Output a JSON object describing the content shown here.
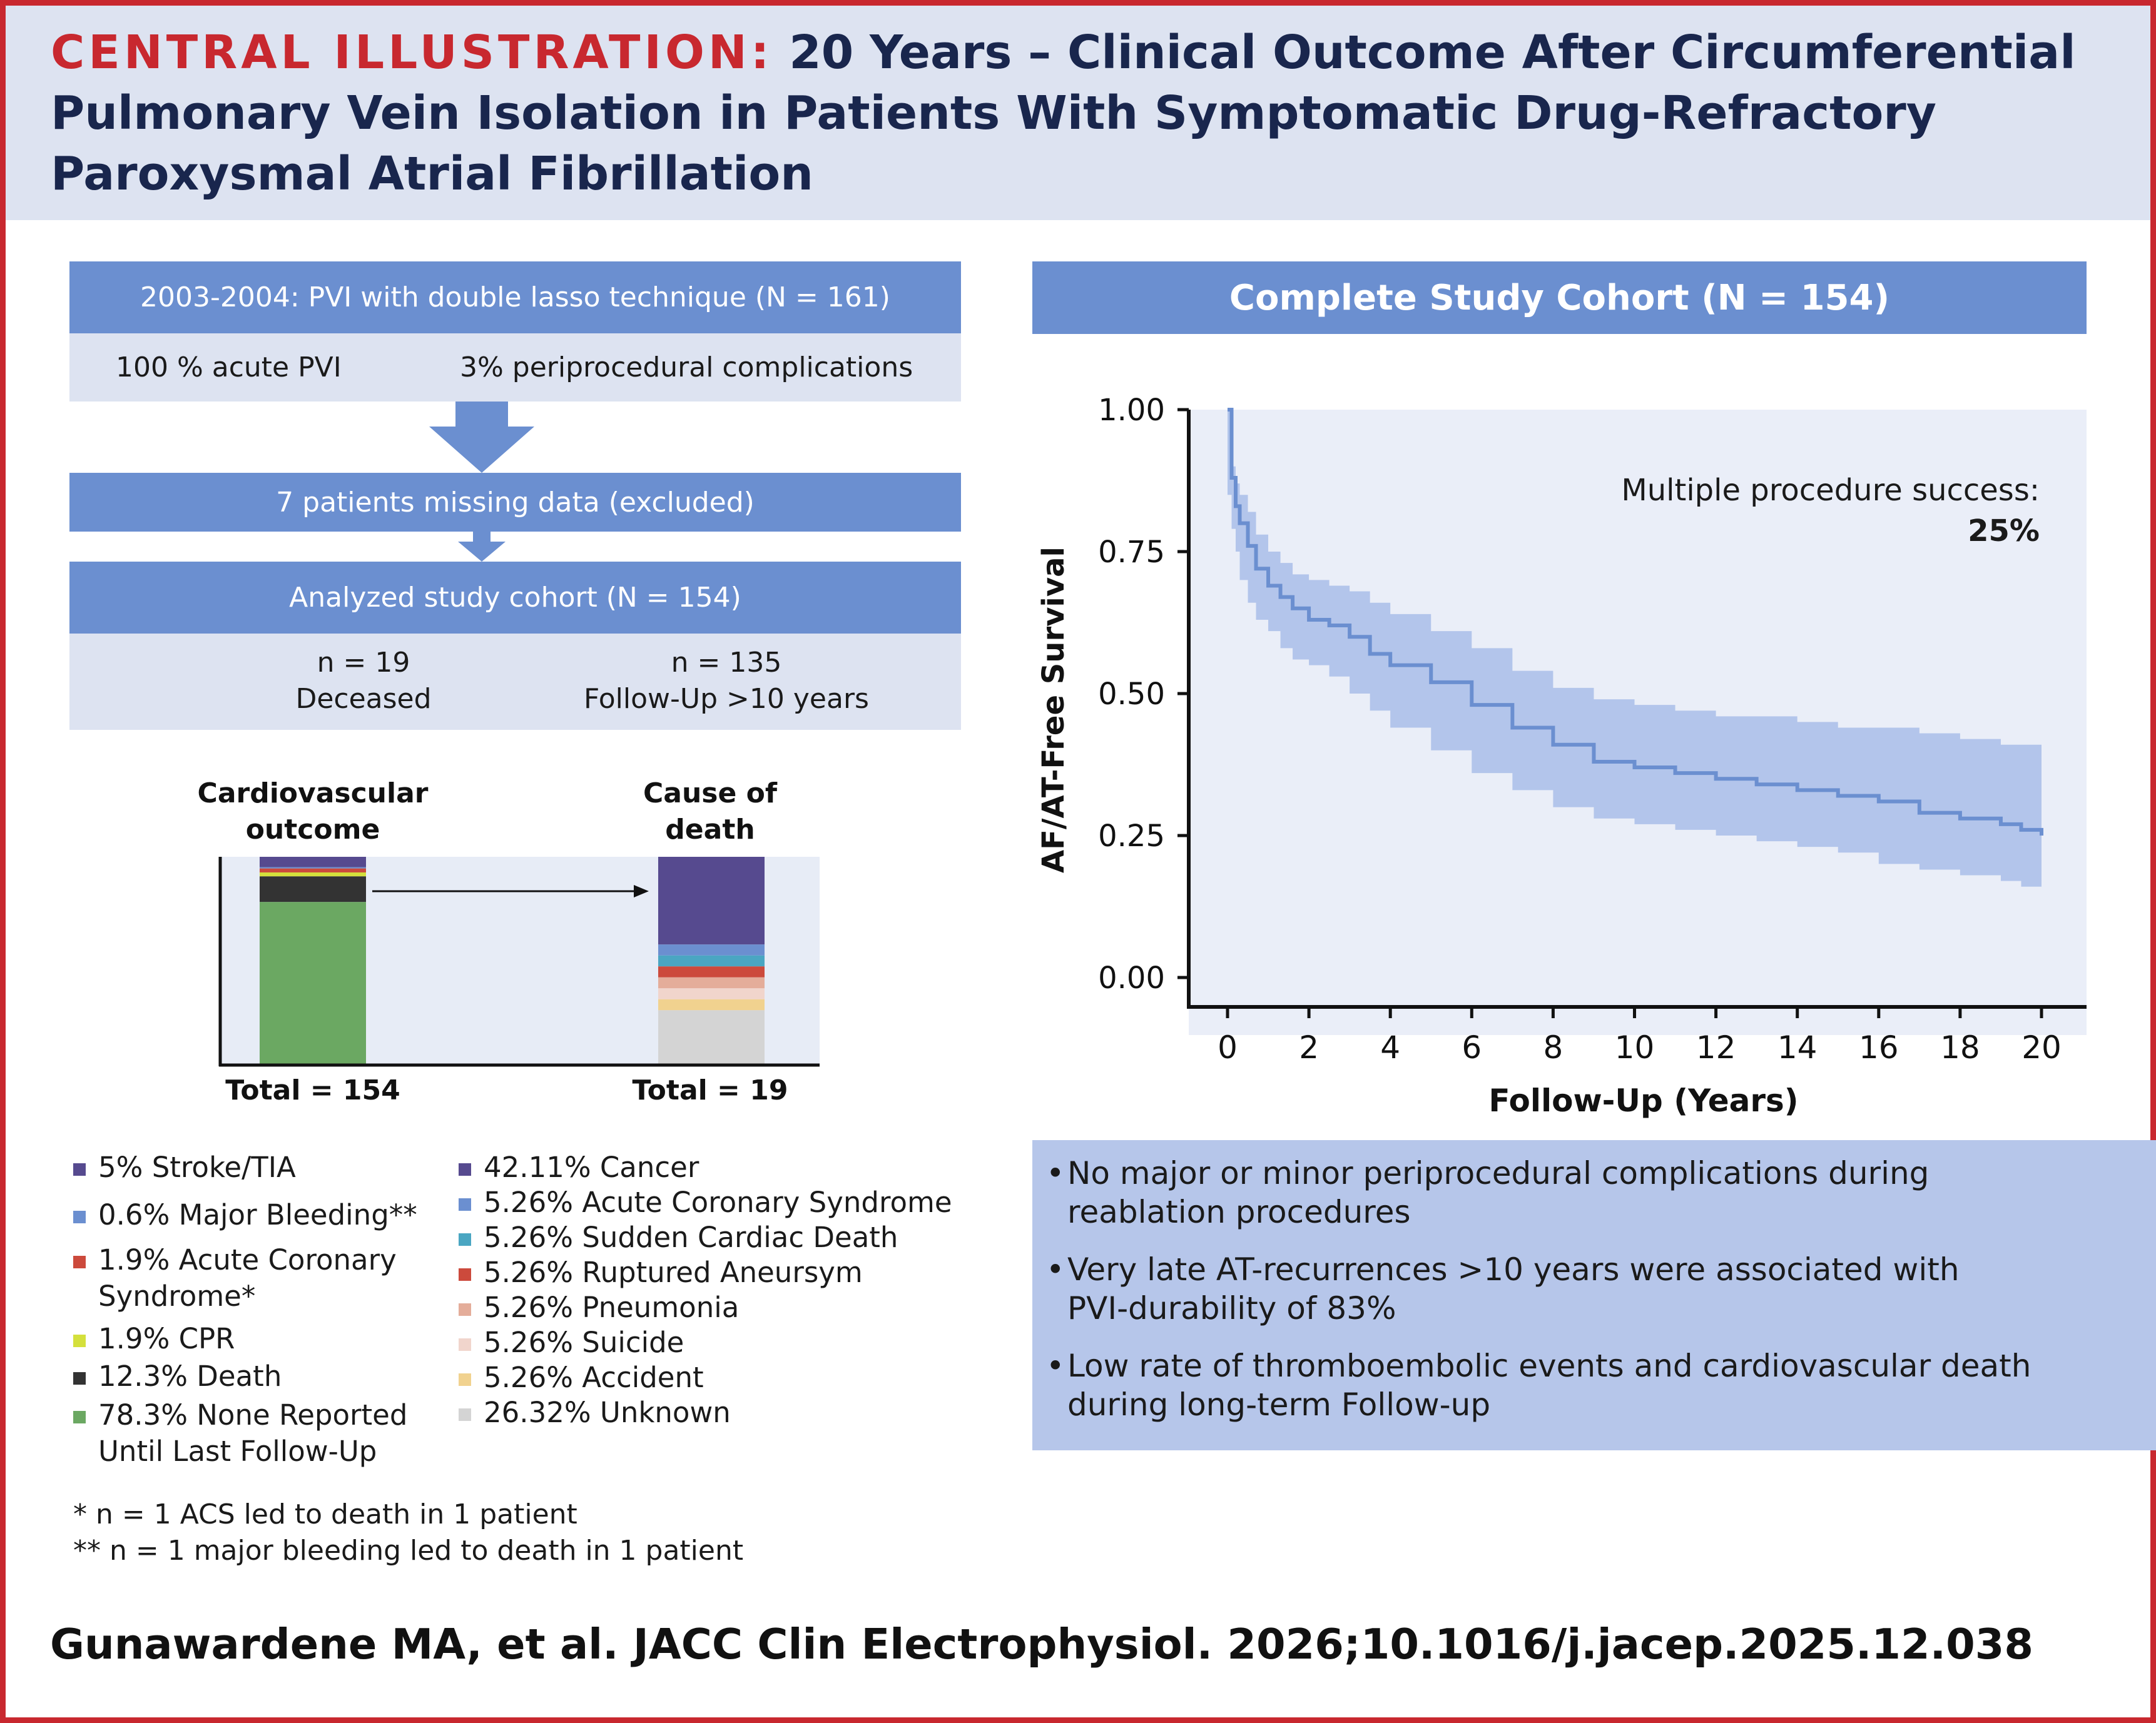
{
  "header": {
    "label": "CENTRAL ILLUSTRATION:",
    "title": "20 Years – Clinical Outcome After Circumferential Pulmonary Vein Isolation in Patients With Symptomatic Drug-Refractory Paroxysmal Atrial Fibrillation"
  },
  "flow": {
    "step1": "2003-2004: PVI with double lasso technique (N = 161)",
    "acute": "100 % acute PVI",
    "complications": "3% periprocedural complications",
    "missing": "7 patients missing data (excluded)",
    "cohort": "Analyzed study cohort (N = 154)",
    "deceased_n": "n = 19",
    "deceased_label": "Deceased",
    "followup_n": "n = 135",
    "followup_label": "Follow-Up >10 years"
  },
  "bars": {
    "left_title": "Cardiovascular\noutcome",
    "right_title": "Cause of\ndeath",
    "left_total": "Total = 154",
    "right_total": "Total = 19"
  },
  "legend_left": [
    {
      "label": "5% Stroke/TIA",
      "color": "#564a8f",
      "value": 5
    },
    {
      "label": "0.6% Major Bleeding**",
      "color": "#6b8fd0",
      "value": 0.6
    },
    {
      "label": "1.9% Acute Coronary\nSyndrome*",
      "color": "#cc4a3c",
      "value": 1.9
    },
    {
      "label": "1.9% CPR",
      "color": "#d4e03c",
      "value": 1.9
    },
    {
      "label": "12.3% Death",
      "color": "#333333",
      "value": 12.3
    },
    {
      "label": "78.3% None Reported\nUntil Last Follow-Up",
      "color": "#6ba862",
      "value": 78.3
    }
  ],
  "legend_right": [
    {
      "label": "42.11% Cancer",
      "color": "#564a8f",
      "value": 42.11
    },
    {
      "label": "5.26% Acute Coronary Syndrome",
      "color": "#6b8fd0",
      "value": 5.26
    },
    {
      "label": "5.26% Sudden Cardiac Death",
      "color": "#4aa6c2",
      "value": 5.26
    },
    {
      "label": "5.26% Ruptured Aneursym",
      "color": "#cc4a3c",
      "value": 5.26
    },
    {
      "label": "5.26% Pneumonia",
      "color": "#e4ad9a",
      "value": 5.26
    },
    {
      "label": "5.26% Suicide",
      "color": "#f1d5cc",
      "value": 5.26
    },
    {
      "label": "5.26% Accident",
      "color": "#f1d28f",
      "value": 5.26
    },
    {
      "label": "26.32% Unknown",
      "color": "#d4d4d4",
      "value": 26.32
    }
  ],
  "footnotes": [
    "* n = 1 ACS led to death in 1 patient",
    "** n = 1 major bleeding led to death in 1 patient"
  ],
  "km_header": "Complete Study Cohort (N = 154)",
  "chart_data": {
    "type": "line",
    "title": "Complete Study Cohort (N = 154)",
    "xlabel": "Follow-Up (Years)",
    "ylabel": "AF/AT-Free Survival",
    "xlim": [
      0,
      20
    ],
    "ylim": [
      0,
      1
    ],
    "xticks": [
      0,
      2,
      4,
      6,
      8,
      10,
      12,
      14,
      16,
      18,
      20
    ],
    "yticks": [
      "0.00",
      "0.25",
      "0.50",
      "0.75",
      "1.00"
    ],
    "annotation": "Multiple procedure success:",
    "annotation_value": "25%",
    "series": [
      {
        "name": "AF/AT-free survival",
        "x": [
          0,
          0.1,
          0.2,
          0.3,
          0.5,
          0.7,
          1.0,
          1.3,
          1.6,
          2.0,
          2.5,
          3.0,
          3.5,
          4.0,
          5.0,
          6.0,
          7.0,
          8.0,
          9.0,
          10.0,
          11.0,
          12.0,
          13.0,
          14.0,
          15.0,
          16.0,
          17.0,
          18.0,
          19.0,
          19.5,
          20.0
        ],
        "y": [
          1.0,
          0.88,
          0.83,
          0.8,
          0.76,
          0.72,
          0.69,
          0.67,
          0.65,
          0.63,
          0.62,
          0.6,
          0.57,
          0.55,
          0.52,
          0.48,
          0.44,
          0.41,
          0.38,
          0.37,
          0.36,
          0.35,
          0.34,
          0.33,
          0.32,
          0.31,
          0.29,
          0.28,
          0.27,
          0.26,
          0.25
        ]
      },
      {
        "name": "Upper CI",
        "x": [
          0,
          0.1,
          0.2,
          0.3,
          0.5,
          0.7,
          1.0,
          1.3,
          1.6,
          2.0,
          2.5,
          3.0,
          3.5,
          4.0,
          5.0,
          6.0,
          7.0,
          8.0,
          9.0,
          10.0,
          11.0,
          12.0,
          13.0,
          14.0,
          15.0,
          16.0,
          17.0,
          18.0,
          19.0,
          19.5,
          20.0
        ],
        "y": [
          1.0,
          0.9,
          0.87,
          0.85,
          0.82,
          0.78,
          0.75,
          0.73,
          0.71,
          0.7,
          0.69,
          0.68,
          0.66,
          0.64,
          0.61,
          0.58,
          0.54,
          0.51,
          0.49,
          0.48,
          0.47,
          0.46,
          0.46,
          0.45,
          0.44,
          0.44,
          0.43,
          0.42,
          0.41,
          0.41,
          0.4
        ]
      },
      {
        "name": "Lower CI",
        "x": [
          0,
          0.1,
          0.2,
          0.3,
          0.5,
          0.7,
          1.0,
          1.3,
          1.6,
          2.0,
          2.5,
          3.0,
          3.5,
          4.0,
          5.0,
          6.0,
          7.0,
          8.0,
          9.0,
          10.0,
          11.0,
          12.0,
          13.0,
          14.0,
          15.0,
          16.0,
          17.0,
          18.0,
          19.0,
          19.5,
          20.0
        ],
        "y": [
          1.0,
          0.85,
          0.79,
          0.75,
          0.7,
          0.66,
          0.63,
          0.61,
          0.58,
          0.56,
          0.55,
          0.53,
          0.5,
          0.47,
          0.44,
          0.4,
          0.36,
          0.33,
          0.3,
          0.28,
          0.27,
          0.26,
          0.25,
          0.24,
          0.23,
          0.22,
          0.2,
          0.19,
          0.18,
          0.17,
          0.16
        ]
      }
    ]
  },
  "bullets": [
    "No major or minor periprocedural complications during\nreablation procedures",
    "Very late AT-recurrences >10 years were associated with\nPVI-durability of 83%",
    "Low rate of thromboembolic events and cardiovascular death\nduring long-term Follow-up"
  ],
  "citation": "Gunawardene MA, et al. JACC Clin Electrophysiol. 2026;10.1016/j.jacep.2025.12.038"
}
